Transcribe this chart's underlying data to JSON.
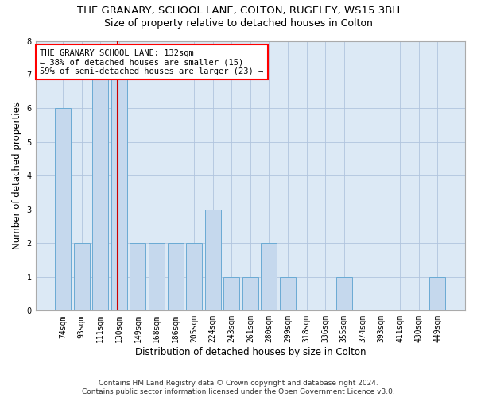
{
  "title": "THE GRANARY, SCHOOL LANE, COLTON, RUGELEY, WS15 3BH",
  "subtitle": "Size of property relative to detached houses in Colton",
  "xlabel": "Distribution of detached houses by size in Colton",
  "ylabel": "Number of detached properties",
  "categories": [
    "74sqm",
    "93sqm",
    "111sqm",
    "130sqm",
    "149sqm",
    "168sqm",
    "186sqm",
    "205sqm",
    "224sqm",
    "243sqm",
    "261sqm",
    "280sqm",
    "299sqm",
    "318sqm",
    "336sqm",
    "355sqm",
    "374sqm",
    "393sqm",
    "411sqm",
    "430sqm",
    "449sqm"
  ],
  "values": [
    6,
    2,
    7,
    7,
    2,
    2,
    2,
    2,
    3,
    1,
    1,
    2,
    1,
    0,
    0,
    1,
    0,
    0,
    0,
    0,
    1
  ],
  "highlight_index": 3,
  "bar_color": "#c5d8ed",
  "bar_edge_color": "#6aaad4",
  "highlight_line_color": "#cc0000",
  "ylim": [
    0,
    8
  ],
  "yticks": [
    0,
    1,
    2,
    3,
    4,
    5,
    6,
    7,
    8
  ],
  "annotation_text": "THE GRANARY SCHOOL LANE: 132sqm\n← 38% of detached houses are smaller (15)\n59% of semi-detached houses are larger (23) →",
  "footer_text": "Contains HM Land Registry data © Crown copyright and database right 2024.\nContains public sector information licensed under the Open Government Licence v3.0.",
  "background_color": "#ffffff",
  "plot_bg_color": "#dce9f5",
  "grid_color": "#b0c4de",
  "title_fontsize": 9.5,
  "subtitle_fontsize": 9,
  "axis_label_fontsize": 8.5,
  "tick_fontsize": 7,
  "annotation_fontsize": 7.5,
  "footer_fontsize": 6.5
}
